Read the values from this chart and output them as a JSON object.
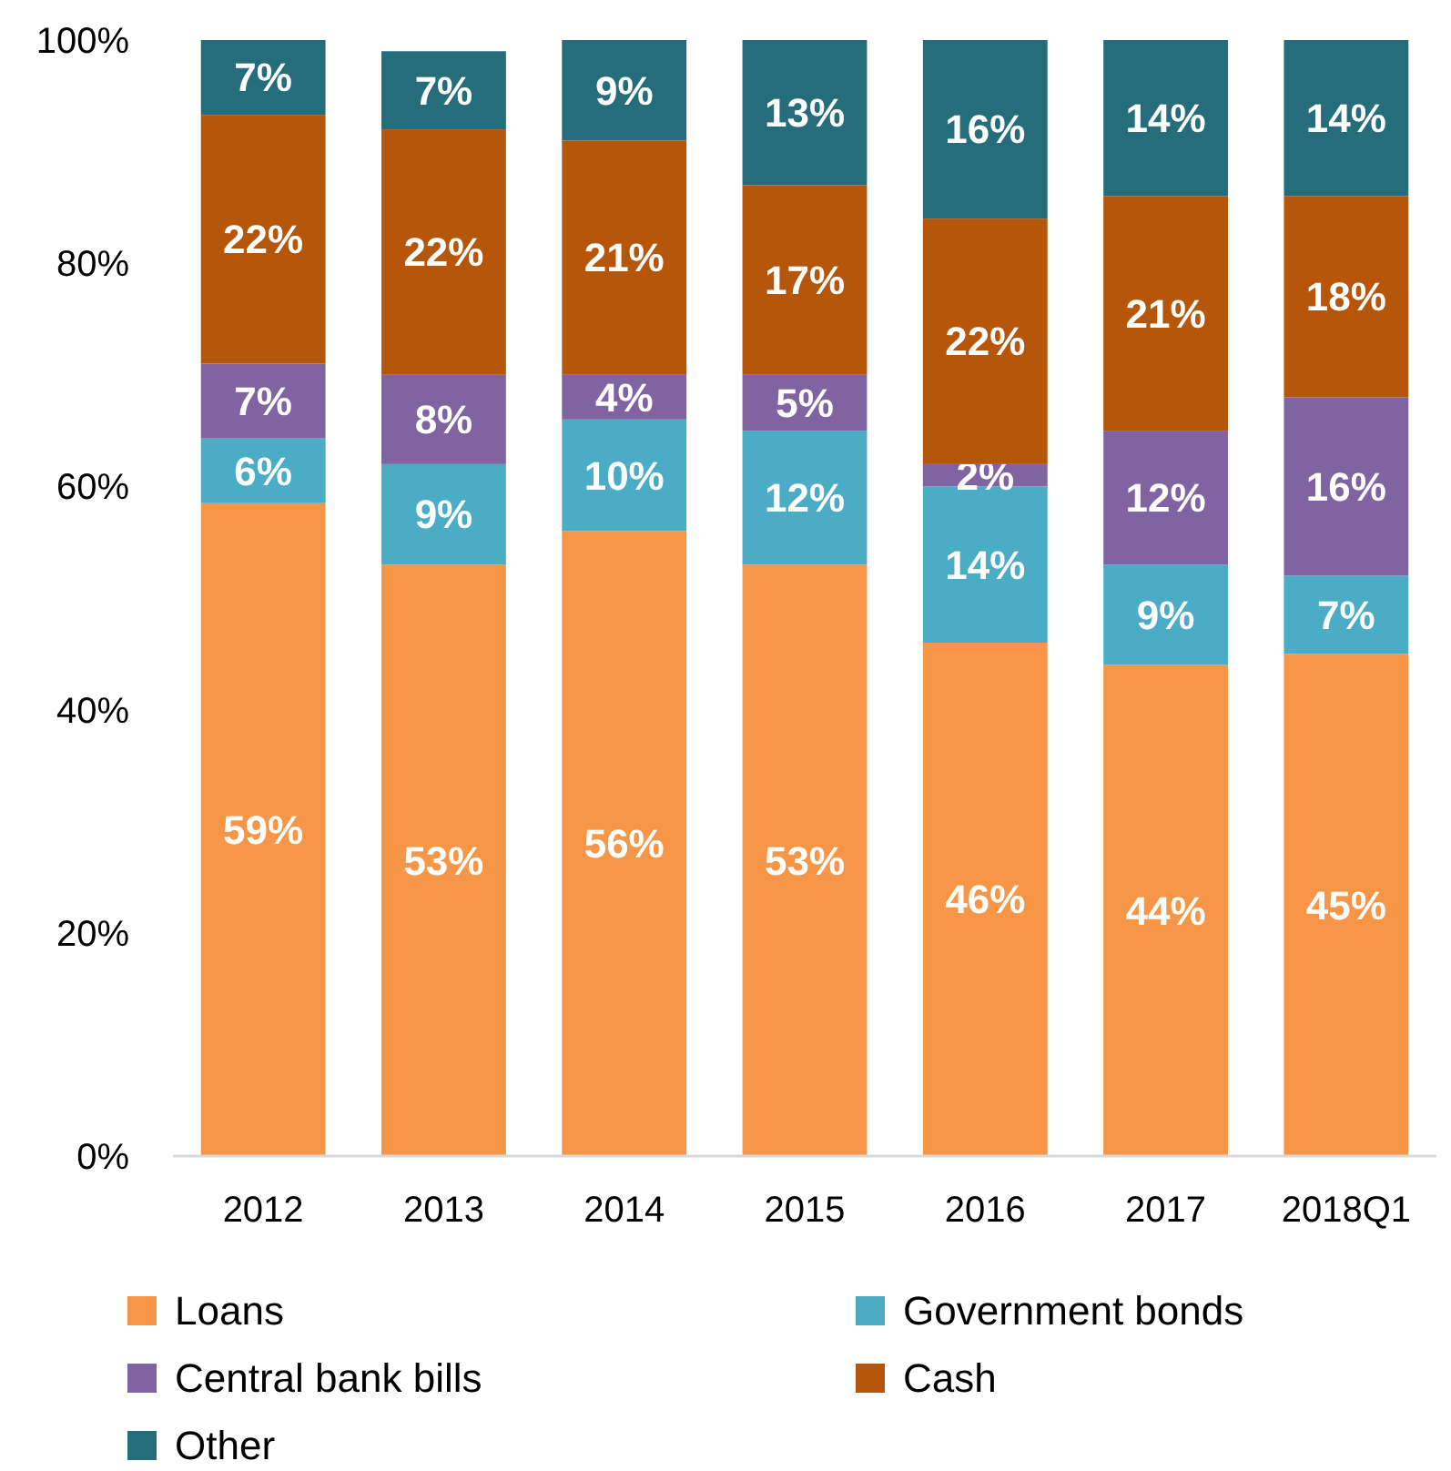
{
  "chart_data": {
    "type": "bar",
    "stacked": true,
    "categories": [
      "2012",
      "2013",
      "2014",
      "2015",
      "2016",
      "2017",
      "2018Q1"
    ],
    "ylim": [
      0,
      100
    ],
    "yticks": [
      {
        "value": 0,
        "label": "0%"
      },
      {
        "value": 20,
        "label": "20%"
      },
      {
        "value": 40,
        "label": "40%"
      },
      {
        "value": 60,
        "label": "60%"
      },
      {
        "value": 80,
        "label": "80%"
      },
      {
        "value": 100,
        "label": "100%"
      }
    ],
    "legend": "bottom",
    "series": [
      {
        "name": "Loans",
        "color": "#f79646",
        "values": [
          58.5,
          53,
          56,
          53,
          46,
          44,
          45
        ],
        "value_labels": [
          "59%",
          "53%",
          "56%",
          "53%",
          "46%",
          "44%",
          "45%"
        ]
      },
      {
        "name": "Government bonds",
        "color": "#4bacc6",
        "values": [
          5.8,
          9,
          10,
          12,
          14,
          9,
          7
        ],
        "value_labels": [
          "6%",
          "9%",
          "10%",
          "12%",
          "14%",
          "9%",
          "7%"
        ]
      },
      {
        "name": "Central bank bills",
        "color": "#8064a2",
        "values": [
          6.7,
          8,
          4,
          5,
          2,
          12,
          16
        ],
        "value_labels": [
          "7%",
          "8%",
          "4%",
          "5%",
          "2%",
          "12%",
          "16%"
        ]
      },
      {
        "name": "Cash",
        "color": "#b6560a",
        "values": [
          22.3,
          22,
          21,
          17,
          22,
          21,
          18
        ],
        "value_labels": [
          "22%",
          "22%",
          "21%",
          "17%",
          "22%",
          "21%",
          "18%"
        ]
      },
      {
        "name": "Other",
        "color": "#266d7c",
        "values": [
          6.7,
          7,
          9,
          13,
          16,
          14,
          14
        ],
        "value_labels": [
          "7%",
          "7%",
          "9%",
          "13%",
          "16%",
          "14%",
          "14%"
        ]
      }
    ]
  }
}
